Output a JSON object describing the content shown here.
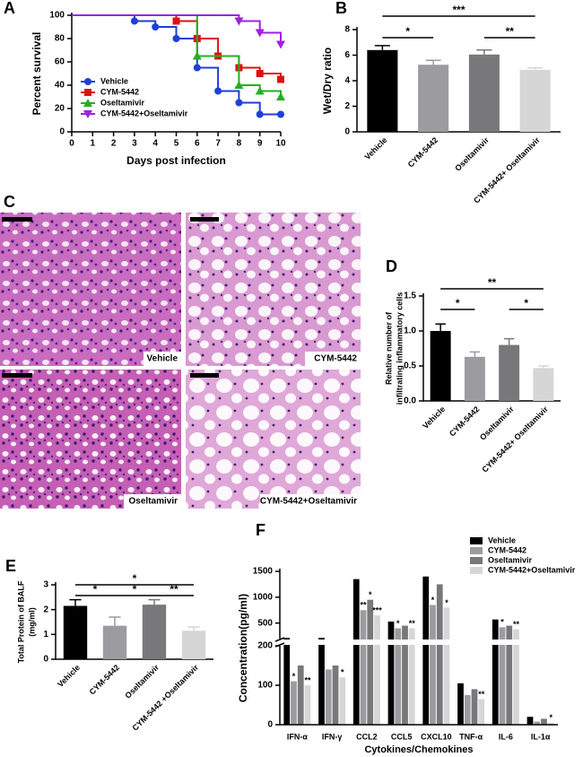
{
  "chart_data": [
    {
      "type": "survival",
      "label": "A",
      "xlabel": "Days post infection",
      "ylabel": "Percent survival",
      "x": [
        0,
        1,
        2,
        3,
        4,
        5,
        6,
        7,
        8,
        9,
        10
      ],
      "xlim": [
        0,
        10
      ],
      "xticks": [
        0,
        1,
        2,
        3,
        4,
        5,
        6,
        7,
        8,
        9,
        10
      ],
      "ylim": [
        0,
        100
      ],
      "yticks": [
        0,
        20,
        40,
        60,
        80,
        100
      ],
      "legend": "lower left",
      "series": [
        {
          "name": "Vehicle",
          "color": "#1f3fd6",
          "marker": "circle",
          "values": [
            100,
            100,
            100,
            95,
            90,
            80,
            55,
            35,
            25,
            15,
            15
          ]
        },
        {
          "name": "CYM-5442",
          "color": "#e01010",
          "marker": "square",
          "values": [
            100,
            100,
            100,
            100,
            100,
            95,
            80,
            65,
            55,
            50,
            45
          ]
        },
        {
          "name": "Oseltamivir",
          "color": "#22b022",
          "marker": "triangle-up",
          "values": [
            100,
            100,
            100,
            100,
            100,
            100,
            65,
            65,
            40,
            35,
            30
          ]
        },
        {
          "name": "CYM-5442+Oseltamivir",
          "color": "#a020e0",
          "marker": "triangle-down",
          "values": [
            100,
            100,
            100,
            100,
            100,
            100,
            100,
            100,
            95,
            85,
            75
          ]
        }
      ]
    },
    {
      "type": "bar",
      "label": "B",
      "ylabel": "Wet/Dry ratio",
      "categories": [
        "Vehicle",
        "CYM-5442",
        "Oseltamivir",
        "CYM-5442+ Oseltamivir"
      ],
      "values": [
        6.4,
        5.25,
        6.05,
        4.85
      ],
      "errors": [
        0.35,
        0.35,
        0.35,
        0.15
      ],
      "colors": [
        "#000000",
        "#9c9ca0",
        "#78787a",
        "#d6d6d6"
      ],
      "ylim": [
        0,
        8
      ],
      "yticks": [
        0,
        2,
        4,
        6,
        8
      ],
      "annotations": [
        "*",
        "***",
        "**"
      ]
    },
    {
      "type": "bar",
      "label": "D",
      "ylabel": [
        "Relative number of",
        "infiltrating inflammatory cells"
      ],
      "categories": [
        "Vehicle",
        "CYM-5442",
        "Oseltamivir",
        "CYM-5442+ Oseltamivir"
      ],
      "values": [
        1.0,
        0.63,
        0.8,
        0.47
      ],
      "errors": [
        0.1,
        0.07,
        0.09,
        0.03
      ],
      "colors": [
        "#000000",
        "#9c9ca0",
        "#78787a",
        "#d6d6d6"
      ],
      "ylim": [
        0,
        1.5
      ],
      "yticks": [
        {
          "value": 0,
          "label": "0.0"
        },
        0.5,
        {
          "value": 1,
          "label": "1.0"
        },
        1.5
      ],
      "annotations": [
        "*",
        "**",
        "*"
      ]
    },
    {
      "type": "bar",
      "label": "E",
      "ylabel": [
        "Total Protein of BALF",
        "(mg/ml)"
      ],
      "categories": [
        "Vehicle",
        "CYM-5442",
        "Oseltamivir",
        "CYM-5442 +Oseltamivir"
      ],
      "values": [
        2.15,
        1.35,
        2.2,
        1.15
      ],
      "errors": [
        0.25,
        0.35,
        0.2,
        0.15
      ],
      "colors": [
        "#000000",
        "#9c9ca0",
        "#78787a",
        "#d6d6d6"
      ],
      "ylim": [
        0,
        3
      ],
      "yticks": [
        0,
        1,
        2,
        3
      ],
      "annotations": [
        "*",
        "*",
        "*",
        "**"
      ]
    },
    {
      "type": "grouped-bar",
      "label": "F",
      "ylabel": "Concentration(pg/ml)",
      "xlabel": "Cytokines/Chemokines",
      "categories": [
        "IFN-α",
        "IFN-γ",
        "CCL2",
        "CCL5",
        "CXCL10",
        "TNF-α",
        "IL-6",
        "IL-1α"
      ],
      "ylim": [
        0,
        1500
      ],
      "ybreak": 200,
      "yticks": [
        0,
        100,
        200,
        500,
        1000,
        1500
      ],
      "legend": "upper right",
      "series": [
        {
          "name": "Vehicle",
          "color": "#000000",
          "values": [
            215,
            215,
            1350,
            530,
            1400,
            105,
            570,
            20
          ]
        },
        {
          "name": "CYM-5442",
          "color": "#9c9ca0",
          "values": [
            110,
            140,
            750,
            400,
            850,
            75,
            420,
            8
          ],
          "stars": [
            "*",
            null,
            "**",
            "*",
            "*",
            null,
            "*",
            null
          ]
        },
        {
          "name": "Oseltamivir",
          "color": "#78787a",
          "values": [
            150,
            150,
            950,
            450,
            1250,
            90,
            450,
            15
          ],
          "stars": [
            null,
            null,
            "*",
            null,
            null,
            null,
            null,
            null
          ]
        },
        {
          "name": "CYM-5442+Oseltamivir",
          "color": "#d6d6d6",
          "values": [
            100,
            120,
            650,
            400,
            800,
            65,
            380,
            5
          ],
          "stars": [
            "**",
            "*",
            "***",
            "**",
            "*",
            "**",
            "**",
            "*"
          ]
        }
      ]
    }
  ],
  "histology": {
    "label": "C",
    "captions": [
      "Vehicle",
      "CYM-5442",
      "Oseltamivir",
      "CYM-5442+Oseltamivir"
    ]
  }
}
